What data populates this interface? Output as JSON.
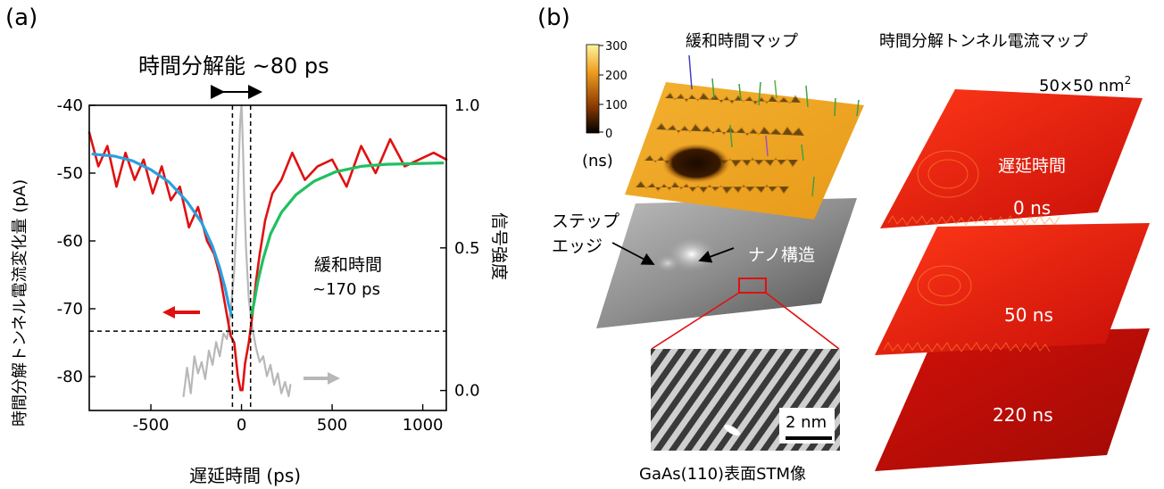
{
  "panel_a": {
    "label": "(a)",
    "resolution_text": "時間分解能 ~80 ps",
    "relax_label": "緩和時間",
    "relax_value": "~170 ps"
  },
  "panel_b": {
    "label": "(b)",
    "title_relax_map": "緩和時間マップ",
    "title_current_map": "時間分解トンネル電流マップ",
    "colorbar_ticks": [
      "300",
      "200",
      "100",
      "0"
    ],
    "colorbar_unit": "(ns)",
    "size_label": "50×50 nm",
    "size_exp": "2",
    "step_edge_line1": "ステップ",
    "step_edge_line2": "エッジ",
    "nano_label": "ナノ構造",
    "scale_bar_label": "2 nm",
    "stm_caption": "GaAs(110)表面STM像",
    "delay_title": "遅延時間",
    "delays": [
      "0 ns",
      "50 ns",
      "220 ns"
    ],
    "colors": {
      "orange": "#e8a020",
      "red": "#d81010",
      "gray": "#8a8a8a"
    }
  },
  "chart_data": {
    "type": "line",
    "xlabel": "遅延時間 (ps)",
    "ylabel_left": "時間分解トンネル電流変化量 (pA)",
    "ylabel_right": "信号強度",
    "xlim": [
      -840,
      1130
    ],
    "ylim_left": [
      -85,
      -40
    ],
    "ylim_right": [
      -0.07,
      1.0
    ],
    "xticks": [
      -500,
      0,
      500,
      1000
    ],
    "yticks_left": [
      -40,
      -50,
      -60,
      -70,
      -80
    ],
    "yticks_right": [
      1.0,
      0.5,
      0.0
    ],
    "xtick_labels": [
      "-500",
      "0",
      "500",
      "1000"
    ],
    "ytick_labels_left": [
      "-40",
      "-50",
      "-60",
      "-70",
      "-80"
    ],
    "ytick_labels_right": [
      "1.0",
      "0.5",
      "0.0"
    ],
    "dashed_vlines_x": [
      -50,
      50
    ],
    "dashed_hline_y": -73.3,
    "series": [
      {
        "color": "#e01010",
        "axis": "left",
        "x": [
          -840,
          -790,
          -740,
          -690,
          -640,
          -590,
          -540,
          -490,
          -440,
          -390,
          -340,
          -290,
          -240,
          -190,
          -150,
          -120,
          -100,
          -80,
          -60,
          -40,
          -20,
          -5,
          5,
          20,
          40,
          60,
          80,
          100,
          130,
          170,
          220,
          280,
          350,
          420,
          500,
          580,
          660,
          740,
          820,
          900,
          980,
          1060,
          1130
        ],
        "y": [
          -44,
          -49,
          -46,
          -52,
          -47,
          -51,
          -48,
          -53,
          -49,
          -54,
          -52,
          -58,
          -55,
          -60,
          -62,
          -65,
          -68,
          -71,
          -74,
          -75,
          -80,
          -82,
          -82,
          -78,
          -75,
          -71,
          -66,
          -62,
          -57,
          -53,
          -51,
          -47,
          -51,
          -49,
          -48,
          -52,
          -46,
          -50,
          -45,
          -49,
          -48,
          -47,
          -48
        ]
      },
      {
        "color": "#29a0e0",
        "axis": "left",
        "x": [
          -820,
          -700,
          -600,
          -500,
          -400,
          -300,
          -220,
          -160,
          -120,
          -90,
          -70,
          -55
        ],
        "y": [
          -47.2,
          -47.5,
          -48.2,
          -49.5,
          -51.3,
          -54.2,
          -57.3,
          -60.8,
          -64.0,
          -67.0,
          -69.5,
          -71.0
        ]
      },
      {
        "color": "#20c060",
        "axis": "left",
        "x": [
          55,
          70,
          90,
          120,
          160,
          220,
          300,
          400,
          520,
          660,
          800,
          950,
          1110
        ],
        "y": [
          -71.0,
          -69.0,
          -66.0,
          -62.6,
          -59.0,
          -55.8,
          -53.2,
          -51.2,
          -49.8,
          -49.0,
          -48.7,
          -48.6,
          -48.5
        ]
      },
      {
        "color": "#b8b8b8",
        "axis": "right",
        "x": [
          -320,
          -300,
          -280,
          -260,
          -240,
          -220,
          -200,
          -180,
          -160,
          -140,
          -120,
          -100,
          -80,
          -60,
          -40,
          -25,
          -15,
          -8,
          -3,
          0,
          3,
          8,
          15,
          25,
          40,
          60,
          80,
          100,
          120,
          140,
          160,
          180,
          200,
          220,
          240,
          260,
          270
        ],
        "y": [
          -0.02,
          0.08,
          -0.01,
          0.12,
          0.06,
          0.1,
          0.04,
          0.14,
          0.09,
          0.17,
          0.12,
          0.2,
          0.18,
          0.28,
          0.42,
          0.62,
          0.8,
          0.93,
          0.98,
          1.0,
          0.95,
          0.85,
          0.68,
          0.5,
          0.32,
          0.22,
          0.15,
          0.1,
          0.12,
          0.05,
          0.09,
          0.02,
          0.06,
          -0.01,
          0.03,
          -0.02,
          0.02
        ]
      }
    ]
  }
}
